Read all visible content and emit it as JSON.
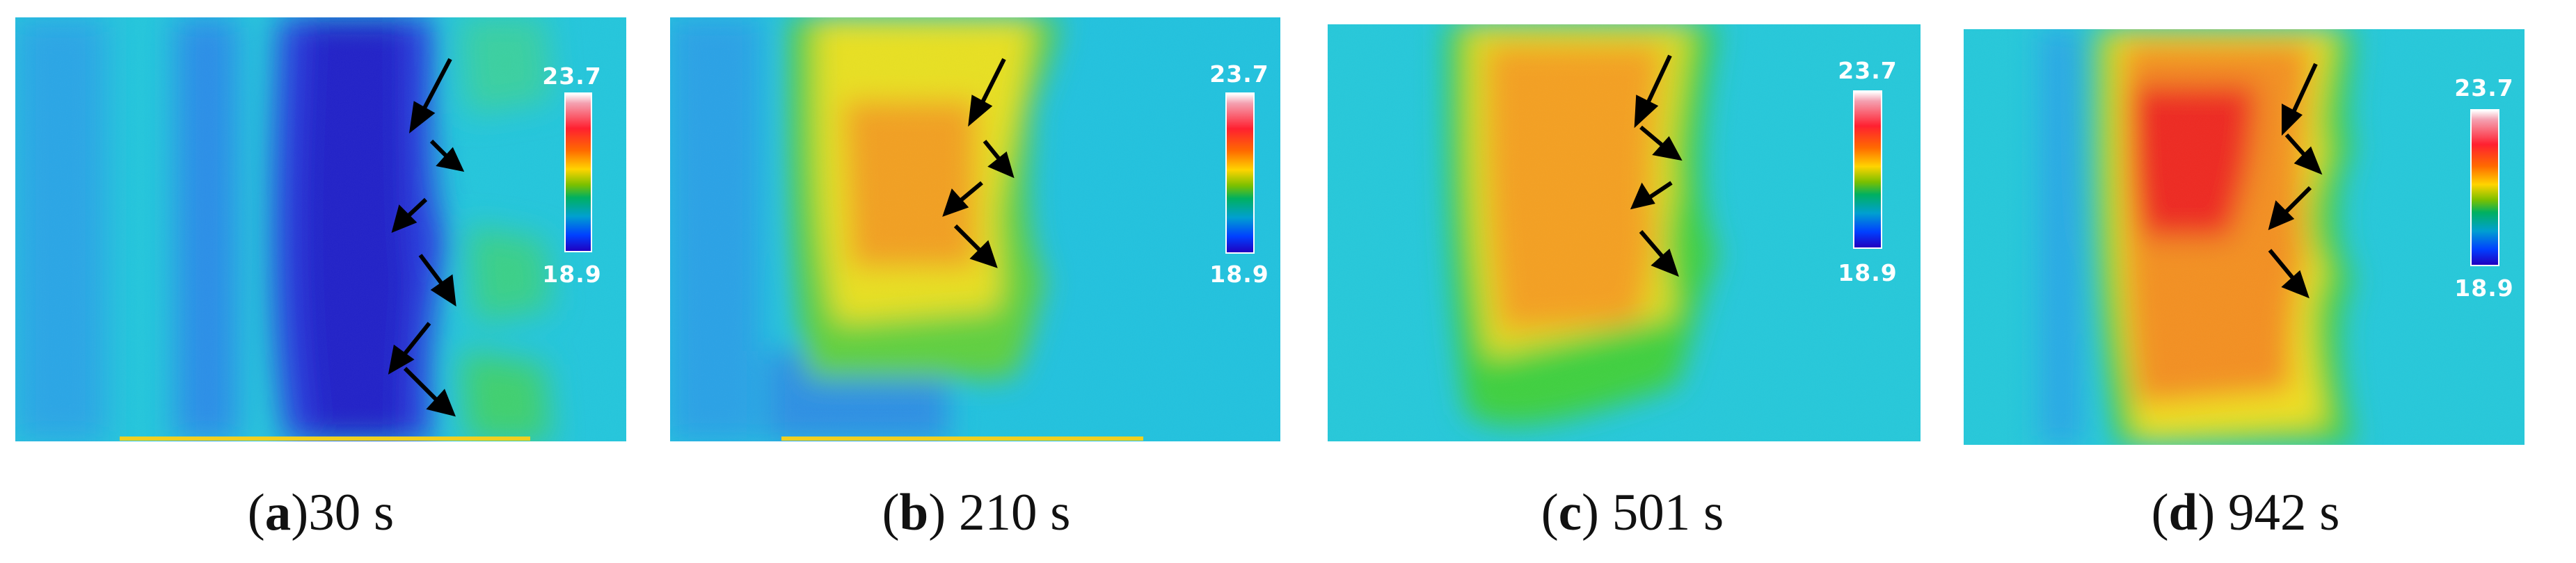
{
  "colorbar": {
    "max": "23.7",
    "min": "18.9"
  },
  "panels": [
    {
      "letter": "a",
      "text": ")30 s",
      "open": "(",
      "pre_space": ""
    },
    {
      "letter": "b",
      "text": ") 210 s",
      "open": "("
    },
    {
      "letter": "c",
      "text": ") 501 s",
      "open": "("
    },
    {
      "letter": "d",
      "text": ") 942 s",
      "open": "("
    }
  ],
  "palette": {
    "background": "#22c8d8",
    "cold": "#2233dd",
    "warm": "#ff9a10",
    "hot": "#ee2020"
  }
}
